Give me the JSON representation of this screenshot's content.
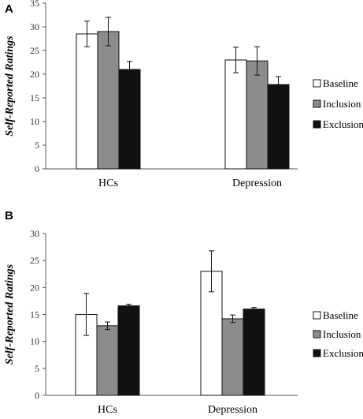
{
  "chart_data": [
    {
      "panel": "A",
      "type": "bar",
      "categories": [
        "HCs",
        "Depression"
      ],
      "series": [
        {
          "name": "Baseline",
          "values": [
            28.5,
            23.0
          ],
          "errors": [
            2.7,
            2.7
          ],
          "color": "#ffffff"
        },
        {
          "name": "Inclusion",
          "values": [
            29.0,
            22.8
          ],
          "errors": [
            3.0,
            3.0
          ],
          "color": "#8c8c8c"
        },
        {
          "name": "Exclusion",
          "values": [
            21.0,
            17.8
          ],
          "errors": [
            1.7,
            1.7
          ],
          "color": "#111111"
        }
      ],
      "ylabel": "Self-Reported Ratings",
      "ylim": [
        0,
        35
      ],
      "yticks": [
        0,
        5,
        10,
        15,
        20,
        25,
        30,
        35
      ],
      "legend": "right"
    },
    {
      "panel": "B",
      "type": "bar",
      "categories": [
        "HCs",
        "Depression"
      ],
      "series": [
        {
          "name": "Baseline",
          "values": [
            15.0,
            23.0
          ],
          "errors": [
            3.9,
            3.8
          ],
          "color": "#ffffff"
        },
        {
          "name": "Inclusion",
          "values": [
            12.9,
            14.2
          ],
          "errors": [
            0.7,
            0.7
          ],
          "color": "#8c8c8c"
        },
        {
          "name": "Exclusion",
          "values": [
            16.6,
            16.0
          ],
          "errors": [
            0.3,
            0.3
          ],
          "color": "#111111"
        }
      ],
      "ylabel": "Self-Reported Ratings",
      "ylim": [
        0,
        30
      ],
      "yticks": [
        0,
        5,
        10,
        15,
        20,
        25,
        30
      ],
      "legend": "right"
    }
  ]
}
